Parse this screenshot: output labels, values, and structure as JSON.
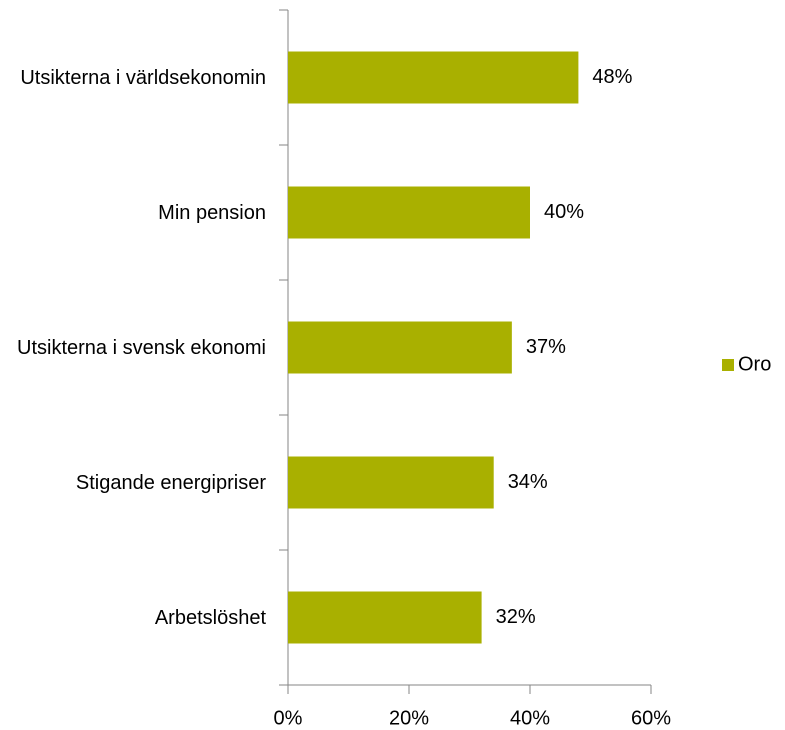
{
  "chart_data": {
    "type": "barh",
    "categories": [
      "Utsikterna i världsekonomin",
      "Min pension",
      "Utsikterna i svensk ekonomi",
      "Stigande energipriser",
      "Arbetslöshet"
    ],
    "series": [
      {
        "name": "Oro",
        "color": "#a9b000",
        "values": [
          48,
          40,
          37,
          34,
          32
        ],
        "value_labels": [
          "48%",
          "40%",
          "37%",
          "34%",
          "32%"
        ]
      }
    ],
    "xlim": [
      0,
      60
    ],
    "xticks": [
      {
        "value": 0,
        "label": "0%"
      },
      {
        "value": 20,
        "label": "20%"
      },
      {
        "value": 40,
        "label": "40%"
      },
      {
        "value": 60,
        "label": "60%"
      }
    ],
    "legend": "right"
  }
}
